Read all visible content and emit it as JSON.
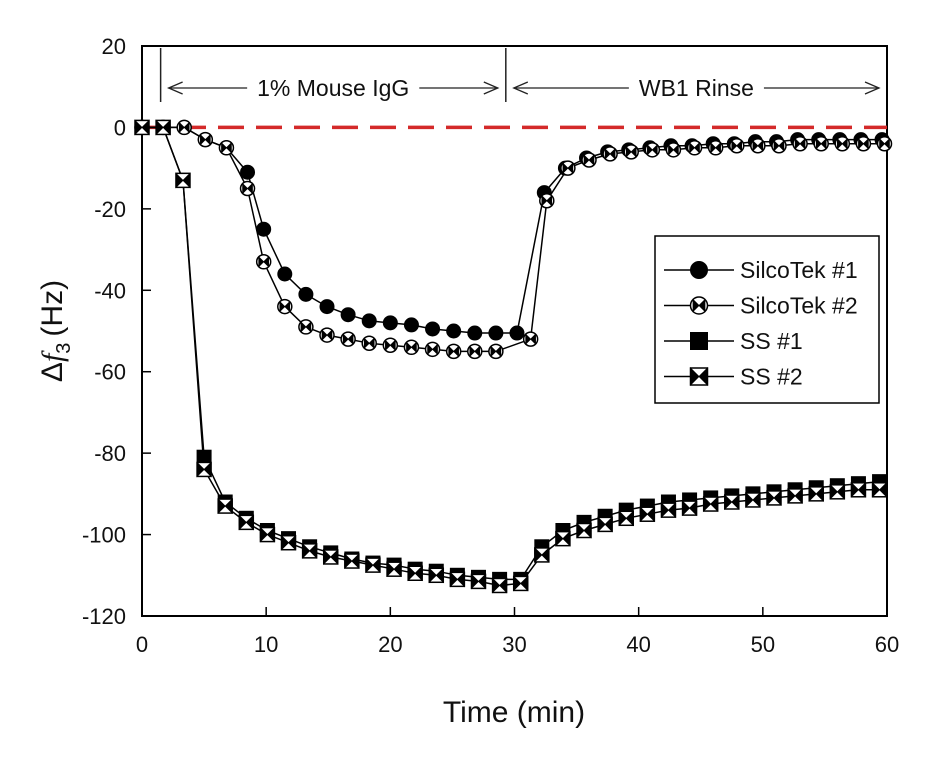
{
  "chart_data": {
    "type": "line",
    "xlabel": "Time (min)",
    "ylabel_prefix": "Δ",
    "ylabel_var": "f",
    "ylabel_sub": "3",
    "ylabel_unit": "(Hz)",
    "xlim": [
      0,
      60
    ],
    "ylim": [
      -120,
      20
    ],
    "xticks": [
      0,
      10,
      20,
      30,
      40,
      50,
      60
    ],
    "yticks": [
      20,
      0,
      -20,
      -40,
      -60,
      -80,
      -100,
      -120
    ],
    "annotations": [
      {
        "text": "1% Mouse IgG",
        "x_start": 1.5,
        "x_end": 29.3
      },
      {
        "text": "WB1 Rinse",
        "x_start": 29.3,
        "x_end": 60
      }
    ],
    "divider_x": [
      1.5,
      29.3
    ],
    "baseline": {
      "y": 0,
      "color": "#d42a2a",
      "style": "dashed"
    },
    "series": [
      {
        "name": "SilcoTek #1",
        "marker": "filled-circle",
        "x": [
          0,
          1.7,
          3.4,
          5.1,
          6.8,
          8.5,
          9.8,
          11.5,
          13.2,
          14.9,
          16.6,
          18.3,
          20,
          21.7,
          23.4,
          25.1,
          26.8,
          28.5,
          30.2,
          32.4,
          34.1,
          35.8,
          37.5,
          39.2,
          40.9,
          42.6,
          44.3,
          46,
          47.7,
          49.4,
          51.1,
          52.8,
          54.5,
          56.2,
          57.9,
          59.6
        ],
        "y": [
          0,
          0,
          0,
          -3,
          -5,
          -11,
          -25,
          -36,
          -41,
          -44,
          -46,
          -47.5,
          -48,
          -48.5,
          -49.5,
          -50,
          -50.5,
          -50.5,
          -50.5,
          -16,
          -10,
          -7.5,
          -6,
          -5.5,
          -5,
          -4.5,
          -4.5,
          -4,
          -4,
          -3.5,
          -3.5,
          -3,
          -3,
          -3,
          -3,
          -3
        ]
      },
      {
        "name": "SilcoTek #2",
        "marker": "bowtie-circle",
        "x": [
          0,
          1.7,
          3.4,
          5.1,
          6.8,
          8.5,
          9.8,
          11.5,
          13.2,
          14.9,
          16.6,
          18.3,
          20,
          21.7,
          23.4,
          25.1,
          26.8,
          28.5,
          31.3,
          32.6,
          34.3,
          36,
          37.7,
          39.4,
          41.1,
          42.8,
          44.5,
          46.2,
          47.9,
          49.6,
          51.3,
          53,
          54.7,
          56.4,
          58.1,
          59.8
        ],
        "y": [
          0,
          0,
          0,
          -3,
          -5,
          -15,
          -33,
          -44,
          -49,
          -51,
          -52,
          -53,
          -53.5,
          -54,
          -54.5,
          -55,
          -55,
          -55,
          -52,
          -18,
          -10,
          -8,
          -6.5,
          -6,
          -5.5,
          -5.5,
          -5,
          -5,
          -4.5,
          -4.5,
          -4.5,
          -4,
          -4,
          -4,
          -4,
          -4
        ]
      },
      {
        "name": "SS #1",
        "marker": "filled-square",
        "x": [
          0,
          1.7,
          3.3,
          5,
          6.7,
          8.4,
          10.1,
          11.8,
          13.5,
          15.2,
          16.9,
          18.6,
          20.3,
          22,
          23.7,
          25.4,
          27.1,
          28.8,
          30.5,
          32.2,
          33.9,
          35.6,
          37.3,
          39,
          40.7,
          42.4,
          44.1,
          45.8,
          47.5,
          49.2,
          50.9,
          52.6,
          54.3,
          56,
          57.7,
          59.4
        ],
        "y": [
          0,
          0,
          -13,
          -81,
          -92,
          -96,
          -99,
          -101,
          -103,
          -104.5,
          -106,
          -107,
          -107.5,
          -108.5,
          -109,
          -110,
          -110.5,
          -111,
          -111,
          -103,
          -99,
          -97,
          -95.5,
          -94,
          -93,
          -92,
          -91.5,
          -91,
          -90.5,
          -90,
          -89.5,
          -89,
          -88.5,
          -88,
          -87.5,
          -87
        ]
      },
      {
        "name": "SS #2",
        "marker": "bowtie-square",
        "x": [
          0,
          1.7,
          3.3,
          5,
          6.7,
          8.4,
          10.1,
          11.8,
          13.5,
          15.2,
          16.9,
          18.6,
          20.3,
          22,
          23.7,
          25.4,
          27.1,
          28.8,
          30.5,
          32.2,
          33.9,
          35.6,
          37.3,
          39,
          40.7,
          42.4,
          44.1,
          45.8,
          47.5,
          49.2,
          50.9,
          52.6,
          54.3,
          56,
          57.7,
          59.4
        ],
        "y": [
          0,
          0,
          -13,
          -84,
          -93,
          -97,
          -100,
          -102,
          -104,
          -105.5,
          -106.5,
          -107.5,
          -108.5,
          -109.5,
          -110,
          -111,
          -111.5,
          -112.5,
          -112,
          -105,
          -101,
          -99,
          -97.5,
          -96,
          -95,
          -94,
          -93.5,
          -92.5,
          -92,
          -91.5,
          -91,
          -90.5,
          -90,
          -89.5,
          -89,
          -89
        ]
      }
    ]
  }
}
